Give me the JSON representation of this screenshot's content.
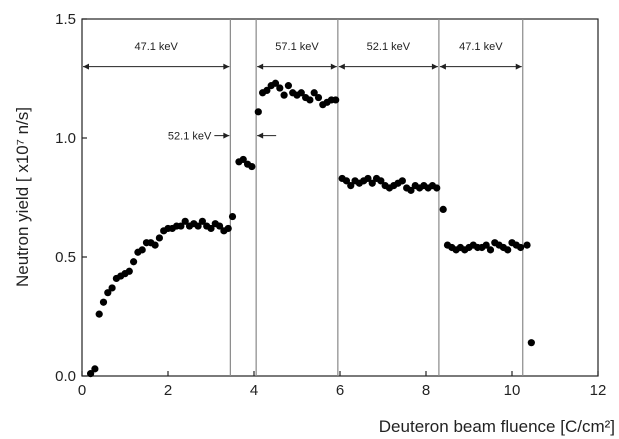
{
  "chart_data": {
    "type": "scatter",
    "title": "",
    "xlabel": "Deuteron beam fluence [C/cm²]",
    "ylabel": "Neutron yield [ x10⁷ n/s]",
    "xlim": [
      0,
      12
    ],
    "ylim": [
      0.0,
      1.5
    ],
    "xticks": [
      "0",
      "2",
      "4",
      "6",
      "8",
      "10",
      "12"
    ],
    "yticks": [
      "0.0",
      "0.5",
      "1.0",
      "1.5"
    ],
    "grid": false,
    "boundaries": [
      3.45,
      4.05,
      5.95,
      8.3,
      10.25
    ],
    "regions": [
      {
        "label": "47.1 keV",
        "from": 0.0,
        "to": 3.45,
        "y": 1.3
      },
      {
        "label": "57.1 keV",
        "from": 4.05,
        "to": 5.95,
        "y": 1.3
      },
      {
        "label": "52.1 keV",
        "from": 5.95,
        "to": 8.3,
        "y": 1.3
      },
      {
        "label": "47.1 keV",
        "from": 8.3,
        "to": 10.25,
        "y": 1.3
      }
    ],
    "annotation": {
      "label": "52.1 keV",
      "from": 3.45,
      "to": 4.05,
      "y": 1.01
    },
    "series": [
      {
        "x": [
          0.2,
          0.3,
          0.4,
          0.5,
          0.6,
          0.7,
          0.8,
          0.9,
          1.0,
          1.1,
          1.2,
          1.3,
          1.4,
          1.5,
          1.6,
          1.7,
          1.8,
          1.9,
          2.0,
          2.1,
          2.2,
          2.3,
          2.4,
          2.5,
          2.6,
          2.7,
          2.8,
          2.9,
          3.0,
          3.1,
          3.2,
          3.3,
          3.4,
          3.5,
          3.65,
          3.75,
          3.85,
          3.95,
          4.1,
          4.2,
          4.3,
          4.4,
          4.5,
          4.6,
          4.7,
          4.8,
          4.9,
          5.0,
          5.1,
          5.2,
          5.3,
          5.4,
          5.5,
          5.6,
          5.7,
          5.8,
          5.9,
          6.05,
          6.15,
          6.25,
          6.35,
          6.45,
          6.55,
          6.65,
          6.75,
          6.85,
          6.95,
          7.05,
          7.15,
          7.25,
          7.35,
          7.45,
          7.55,
          7.65,
          7.75,
          7.85,
          7.95,
          8.05,
          8.15,
          8.25,
          8.4,
          8.5,
          8.6,
          8.7,
          8.8,
          8.9,
          9.0,
          9.1,
          9.2,
          9.3,
          9.4,
          9.5,
          9.6,
          9.7,
          9.8,
          9.9,
          10.0,
          10.1,
          10.2,
          10.35,
          10.45
        ],
        "y": [
          0.01,
          0.03,
          0.26,
          0.31,
          0.35,
          0.37,
          0.41,
          0.42,
          0.43,
          0.44,
          0.48,
          0.52,
          0.53,
          0.56,
          0.56,
          0.55,
          0.58,
          0.61,
          0.62,
          0.62,
          0.63,
          0.63,
          0.65,
          0.63,
          0.64,
          0.63,
          0.65,
          0.63,
          0.62,
          0.64,
          0.63,
          0.61,
          0.62,
          0.67,
          0.9,
          0.91,
          0.89,
          0.88,
          1.11,
          1.19,
          1.2,
          1.22,
          1.23,
          1.21,
          1.18,
          1.22,
          1.19,
          1.18,
          1.19,
          1.17,
          1.16,
          1.19,
          1.17,
          1.14,
          1.15,
          1.16,
          1.16,
          0.83,
          0.82,
          0.8,
          0.82,
          0.81,
          0.82,
          0.83,
          0.81,
          0.83,
          0.82,
          0.8,
          0.79,
          0.8,
          0.81,
          0.82,
          0.79,
          0.78,
          0.8,
          0.79,
          0.8,
          0.79,
          0.8,
          0.79,
          0.7,
          0.55,
          0.54,
          0.53,
          0.54,
          0.53,
          0.54,
          0.55,
          0.54,
          0.54,
          0.55,
          0.53,
          0.56,
          0.55,
          0.54,
          0.53,
          0.56,
          0.55,
          0.54,
          0.55,
          0.14
        ]
      }
    ]
  }
}
